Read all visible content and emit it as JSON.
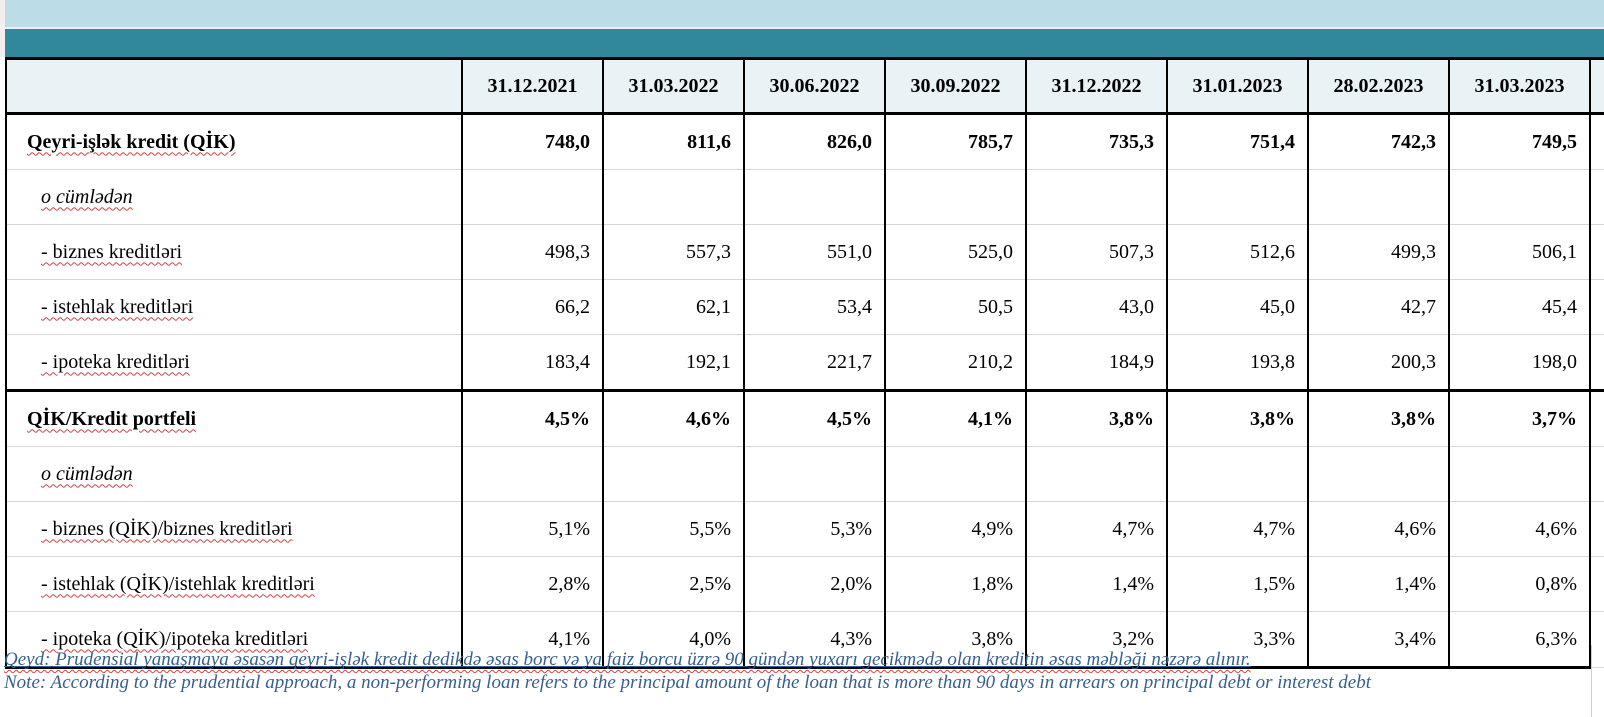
{
  "table": {
    "header": {
      "label_column": "",
      "dates": [
        "31.12.2021",
        "31.03.2022",
        "30.06.2022",
        "30.09.2022",
        "31.12.2022",
        "31.01.2023",
        "28.02.2023",
        "31.03.2023"
      ]
    },
    "rows": [
      {
        "label": "Qeyri-işlək kredit (QİK)",
        "emphasis": "bold",
        "indent": "main",
        "values": [
          "748,0",
          "811,6",
          "826,0",
          "785,7",
          "735,3",
          "751,4",
          "742,3",
          "749,5"
        ]
      },
      {
        "label": "o cümlədən",
        "emphasis": "italic",
        "indent": "sub",
        "values": [
          "",
          "",
          "",
          "",
          "",
          "",
          "",
          ""
        ]
      },
      {
        "label": "- biznes kreditləri",
        "emphasis": "normal",
        "indent": "sub",
        "values": [
          "498,3",
          "557,3",
          "551,0",
          "525,0",
          "507,3",
          "512,6",
          "499,3",
          "506,1"
        ]
      },
      {
        "label": "- istehlak kreditləri",
        "emphasis": "normal",
        "indent": "sub",
        "values": [
          "66,2",
          "62,1",
          "53,4",
          "50,5",
          "43,0",
          "45,0",
          "42,7",
          "45,4"
        ]
      },
      {
        "label": "- ipoteka kreditləri",
        "emphasis": "normal",
        "indent": "sub",
        "values": [
          "183,4",
          "192,1",
          "221,7",
          "210,2",
          "184,9",
          "193,8",
          "200,3",
          "198,0"
        ]
      },
      {
        "label": "QİK/Kredit portfeli",
        "emphasis": "bold",
        "indent": "main",
        "values": [
          "4,5%",
          "4,6%",
          "4,5%",
          "4,1%",
          "3,8%",
          "3,8%",
          "3,8%",
          "3,7%"
        ]
      },
      {
        "label": "o cümlədən",
        "emphasis": "italic",
        "indent": "sub",
        "values": [
          "",
          "",
          "",
          "",
          "",
          "",
          "",
          ""
        ]
      },
      {
        "label": "- biznes (QİK)/biznes kreditləri",
        "emphasis": "normal",
        "indent": "sub",
        "values": [
          "5,1%",
          "5,5%",
          "5,3%",
          "4,9%",
          "4,7%",
          "4,7%",
          "4,6%",
          "4,6%"
        ]
      },
      {
        "label": "- istehlak (QİK)/istehlak kreditləri",
        "emphasis": "normal",
        "indent": "sub",
        "values": [
          "2,8%",
          "2,5%",
          "2,0%",
          "1,8%",
          "1,4%",
          "1,5%",
          "1,4%",
          "0,8%"
        ]
      },
      {
        "label": "- ipoteka (QİK)/ipoteka kreditləri",
        "emphasis": "normal",
        "indent": "sub",
        "values": [
          "4,1%",
          "4,0%",
          "4,3%",
          "3,8%",
          "3,2%",
          "3,3%",
          "3,4%",
          "6,3%"
        ]
      }
    ]
  },
  "notes": {
    "qeyd": "Qeyd: Prudensial yanaşmaya əsasən qeyri-işlək kredit dedikdə əsas borc və ya faiz borcu üzrə 90 gündən yuxarı gecikmədə olan kreditin əsas məbləği nəzərə alınır.",
    "note": "Note: According to the prudential approach, a non-performing loan refers to the principal amount of the loan that is more than 90 days in arrears on principal debt or interest debt"
  },
  "colors": {
    "banner_light": "#bcdde7",
    "banner_teal": "#31879b",
    "header_bg": "#e9f3f6",
    "note_text": "#365f91",
    "squiggle": "#cc4444",
    "grid_dark": "#000000",
    "grid_light": "#d6d6d6"
  }
}
